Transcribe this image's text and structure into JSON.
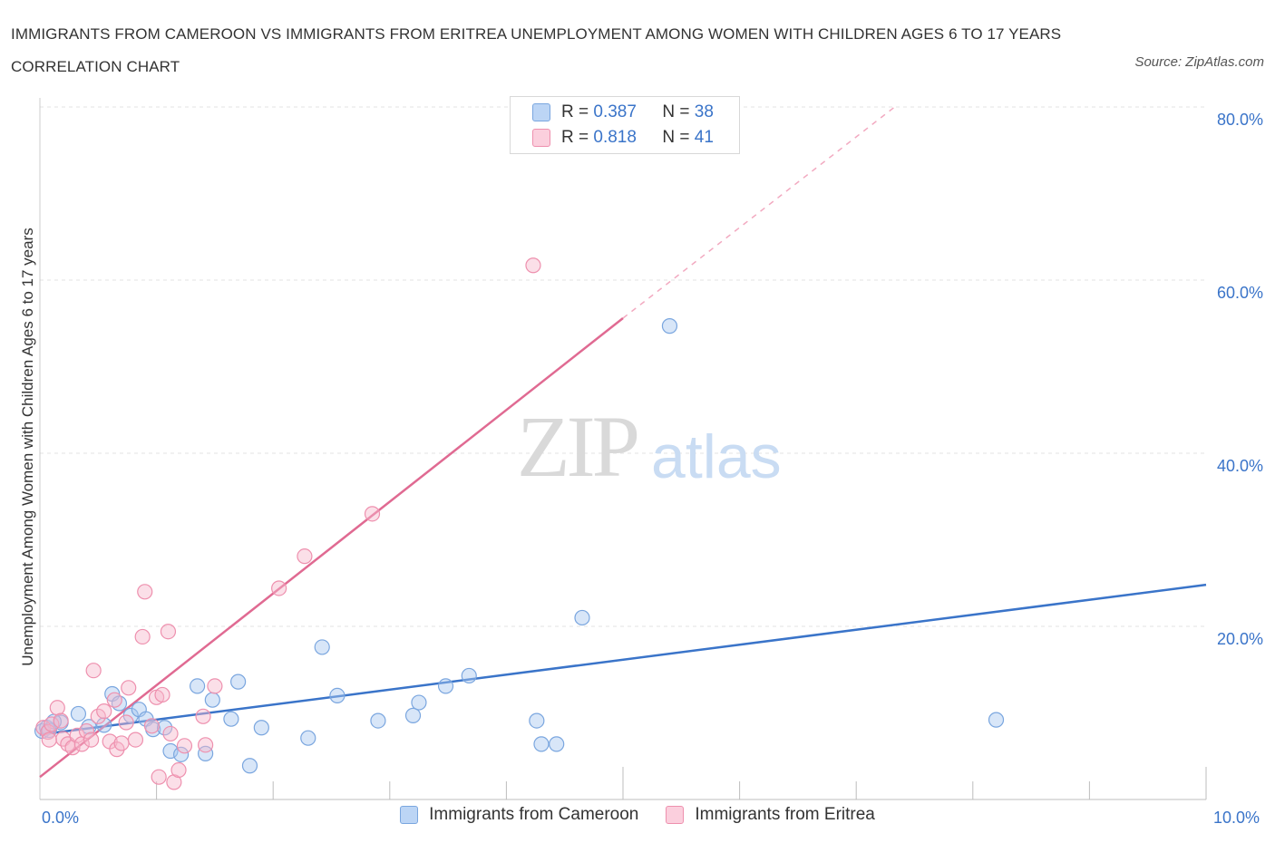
{
  "title": "IMMIGRANTS FROM CAMEROON VS IMMIGRANTS FROM ERITREA UNEMPLOYMENT AMONG WOMEN WITH CHILDREN AGES 6 TO 17 YEARS CORRELATION CHART",
  "source": "Source: ZipAtlas.com",
  "watermark": {
    "zip": "ZIP",
    "atlas": "atlas"
  },
  "legend": {
    "r_label": "R =",
    "n_label": "N =",
    "series": [
      {
        "r": "0.387",
        "n": "38"
      },
      {
        "r": "0.818",
        "n": "41"
      }
    ]
  },
  "chart_data": {
    "type": "scatter",
    "title": "IMMIGRANTS FROM CAMEROON VS IMMIGRANTS FROM ERITREA UNEMPLOYMENT AMONG WOMEN WITH CHILDREN AGES 6 TO 17 YEARS CORRELATION CHART",
    "xlabel": "",
    "ylabel": "Unemployment Among Women with Children Ages 6 to 17 years",
    "xlim": [
      0,
      10
    ],
    "ylim": [
      0,
      80
    ],
    "x_tick_labels": [
      {
        "value": 0,
        "label": "0.0%"
      },
      {
        "value": 10,
        "label": "10.0%"
      }
    ],
    "y_tick_labels": [
      {
        "value": 20,
        "label": "20.0%"
      },
      {
        "value": 40,
        "label": "40.0%"
      },
      {
        "value": 60,
        "label": "60.0%"
      },
      {
        "value": 80,
        "label": "80.0%"
      }
    ],
    "x_minor_ticks": [
      1,
      2,
      3,
      4,
      5,
      6,
      7,
      8,
      9,
      10
    ],
    "grid": true,
    "legend_position": "top-center",
    "series": [
      {
        "name": "Immigrants from Cameroon",
        "color": "#a9c8f0",
        "edge_color": "#7aa6df",
        "line_color": "#3a74c9",
        "r": 0.387,
        "n": 38,
        "trend": {
          "x0": 0,
          "y0": 7.5,
          "x1": 10,
          "y1": 24.8,
          "dashed_to": null
        },
        "points": [
          [
            0.02,
            7.9
          ],
          [
            0.06,
            8.3
          ],
          [
            0.08,
            8.0
          ],
          [
            0.18,
            8.9
          ],
          [
            0.33,
            9.9
          ],
          [
            0.42,
            8.4
          ],
          [
            0.55,
            8.6
          ],
          [
            0.62,
            12.2
          ],
          [
            0.68,
            11.1
          ],
          [
            0.78,
            9.7
          ],
          [
            0.85,
            10.4
          ],
          [
            0.91,
            9.3
          ],
          [
            0.97,
            8.1
          ],
          [
            1.07,
            8.3
          ],
          [
            1.12,
            5.6
          ],
          [
            1.21,
            5.2
          ],
          [
            1.35,
            13.1
          ],
          [
            1.42,
            5.3
          ],
          [
            1.48,
            11.5
          ],
          [
            1.64,
            9.3
          ],
          [
            1.7,
            13.6
          ],
          [
            1.8,
            3.9
          ],
          [
            1.9,
            8.3
          ],
          [
            2.3,
            7.1
          ],
          [
            2.42,
            17.6
          ],
          [
            2.55,
            12.0
          ],
          [
            2.9,
            9.1
          ],
          [
            3.2,
            9.7
          ],
          [
            3.25,
            11.2
          ],
          [
            3.48,
            13.1
          ],
          [
            3.68,
            14.3
          ],
          [
            4.26,
            9.1
          ],
          [
            4.3,
            6.4
          ],
          [
            4.43,
            6.4
          ],
          [
            4.65,
            21.0
          ],
          [
            5.4,
            54.7
          ],
          [
            8.2,
            9.2
          ],
          [
            0.12,
            9.0
          ]
        ]
      },
      {
        "name": "Immigrants from Eritrea",
        "color": "#f7b8cc",
        "edge_color": "#ee90ae",
        "line_color": "#e06a92",
        "r": 0.818,
        "n": 41,
        "trend": {
          "x0": 0,
          "y0": 2.6,
          "x1": 5.0,
          "y1": 55.6,
          "dashed_to": [
            7.33,
            80.0
          ]
        },
        "points": [
          [
            0.03,
            8.3
          ],
          [
            0.07,
            7.8
          ],
          [
            0.1,
            8.7
          ],
          [
            0.15,
            10.6
          ],
          [
            0.2,
            7.0
          ],
          [
            0.24,
            6.4
          ],
          [
            0.28,
            6.0
          ],
          [
            0.32,
            7.4
          ],
          [
            0.36,
            6.4
          ],
          [
            0.4,
            7.9
          ],
          [
            0.44,
            6.9
          ],
          [
            0.46,
            14.9
          ],
          [
            0.5,
            9.6
          ],
          [
            0.55,
            10.2
          ],
          [
            0.6,
            6.7
          ],
          [
            0.64,
            11.5
          ],
          [
            0.66,
            5.8
          ],
          [
            0.7,
            6.5
          ],
          [
            0.74,
            8.9
          ],
          [
            0.76,
            12.9
          ],
          [
            0.82,
            6.9
          ],
          [
            0.88,
            18.8
          ],
          [
            0.9,
            24.0
          ],
          [
            0.96,
            8.5
          ],
          [
            1.0,
            11.8
          ],
          [
            1.02,
            2.6
          ],
          [
            1.05,
            12.1
          ],
          [
            1.1,
            19.4
          ],
          [
            1.12,
            7.6
          ],
          [
            1.15,
            2.0
          ],
          [
            1.19,
            3.4
          ],
          [
            1.24,
            6.2
          ],
          [
            1.4,
            9.6
          ],
          [
            1.42,
            6.3
          ],
          [
            1.5,
            13.1
          ],
          [
            2.05,
            24.4
          ],
          [
            2.27,
            28.1
          ],
          [
            2.85,
            33.0
          ],
          [
            4.23,
            61.7
          ],
          [
            0.08,
            6.9
          ],
          [
            0.18,
            9.1
          ]
        ]
      }
    ]
  }
}
